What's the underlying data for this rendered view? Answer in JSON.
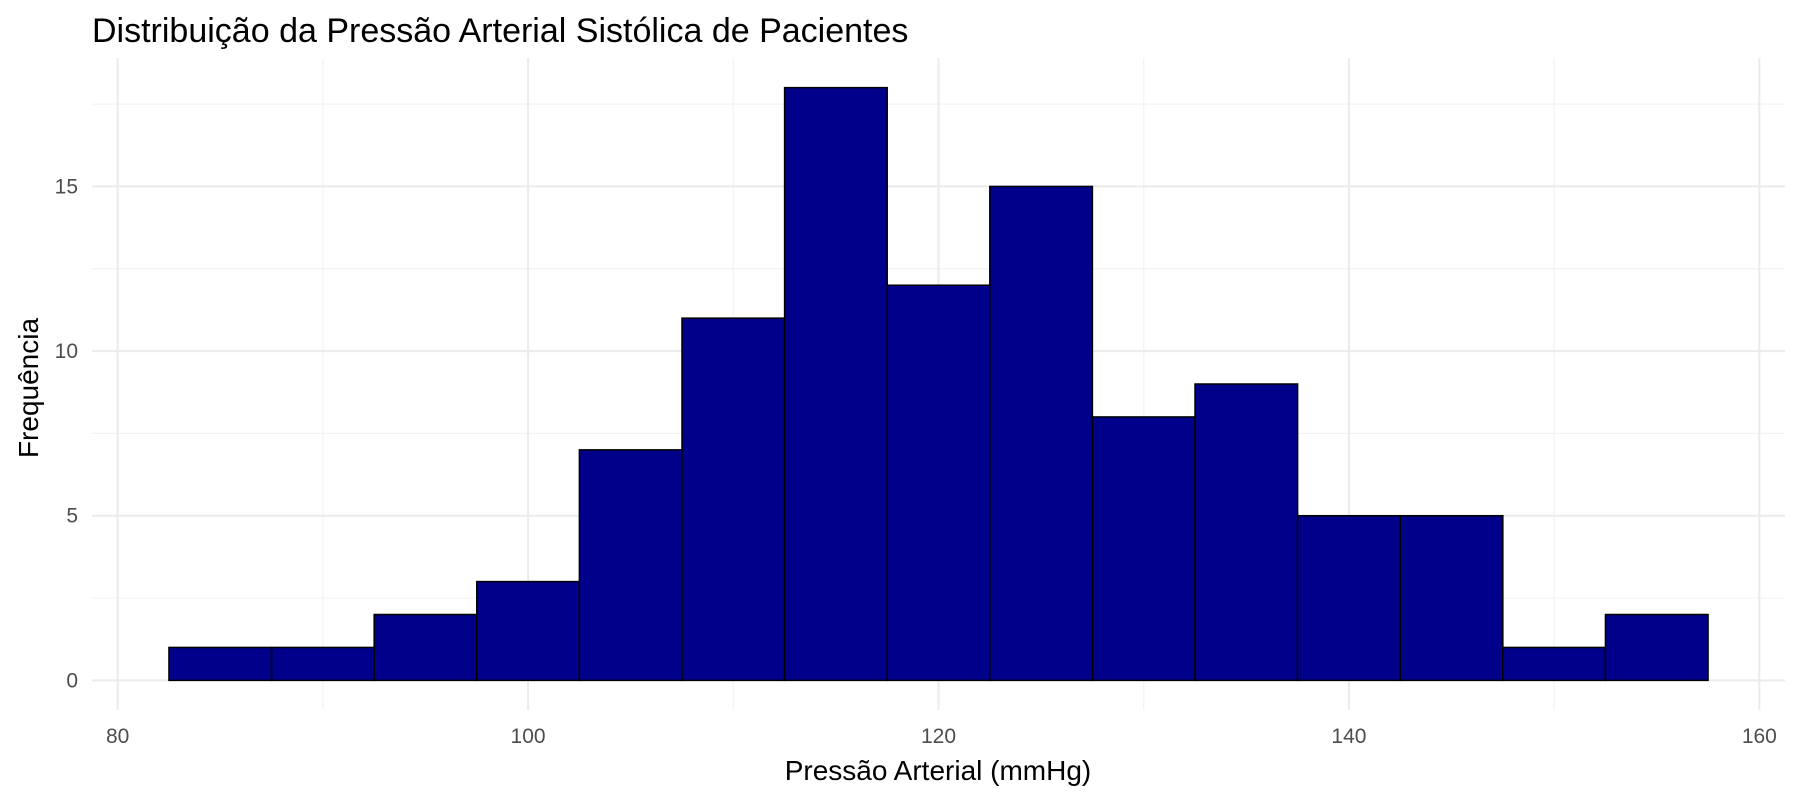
{
  "chart_data": {
    "type": "bar",
    "title": "Distribuição da Pressão Arterial Sistólica de Pacientes",
    "xlabel": "Pressão Arterial (mmHg)",
    "ylabel": "Frequência",
    "xlim": [
      78.75,
      161.25
    ],
    "ylim": [
      -0.9,
      18.9
    ],
    "x_ticks": [
      80,
      100,
      120,
      140,
      160
    ],
    "y_ticks": [
      0,
      5,
      10,
      15
    ],
    "grid": true,
    "bins": [
      {
        "from": 82.5,
        "to": 87.5,
        "count": 1
      },
      {
        "from": 87.5,
        "to": 92.5,
        "count": 1
      },
      {
        "from": 92.5,
        "to": 97.5,
        "count": 2
      },
      {
        "from": 97.5,
        "to": 102.5,
        "count": 3
      },
      {
        "from": 102.5,
        "to": 107.5,
        "count": 7
      },
      {
        "from": 107.5,
        "to": 112.5,
        "count": 11
      },
      {
        "from": 112.5,
        "to": 117.5,
        "count": 18
      },
      {
        "from": 117.5,
        "to": 122.5,
        "count": 12
      },
      {
        "from": 122.5,
        "to": 127.5,
        "count": 15
      },
      {
        "from": 127.5,
        "to": 132.5,
        "count": 8
      },
      {
        "from": 132.5,
        "to": 137.5,
        "count": 9
      },
      {
        "from": 137.5,
        "to": 142.5,
        "count": 5
      },
      {
        "from": 142.5,
        "to": 147.5,
        "count": 5
      },
      {
        "from": 147.5,
        "to": 152.5,
        "count": 1
      },
      {
        "from": 152.5,
        "to": 157.5,
        "count": 2
      }
    ],
    "colors": {
      "bar_fill": "#00008B",
      "bar_stroke": "#000000",
      "grid_major": "#ebebeb",
      "grid_minor": "#f3f3f3"
    }
  }
}
